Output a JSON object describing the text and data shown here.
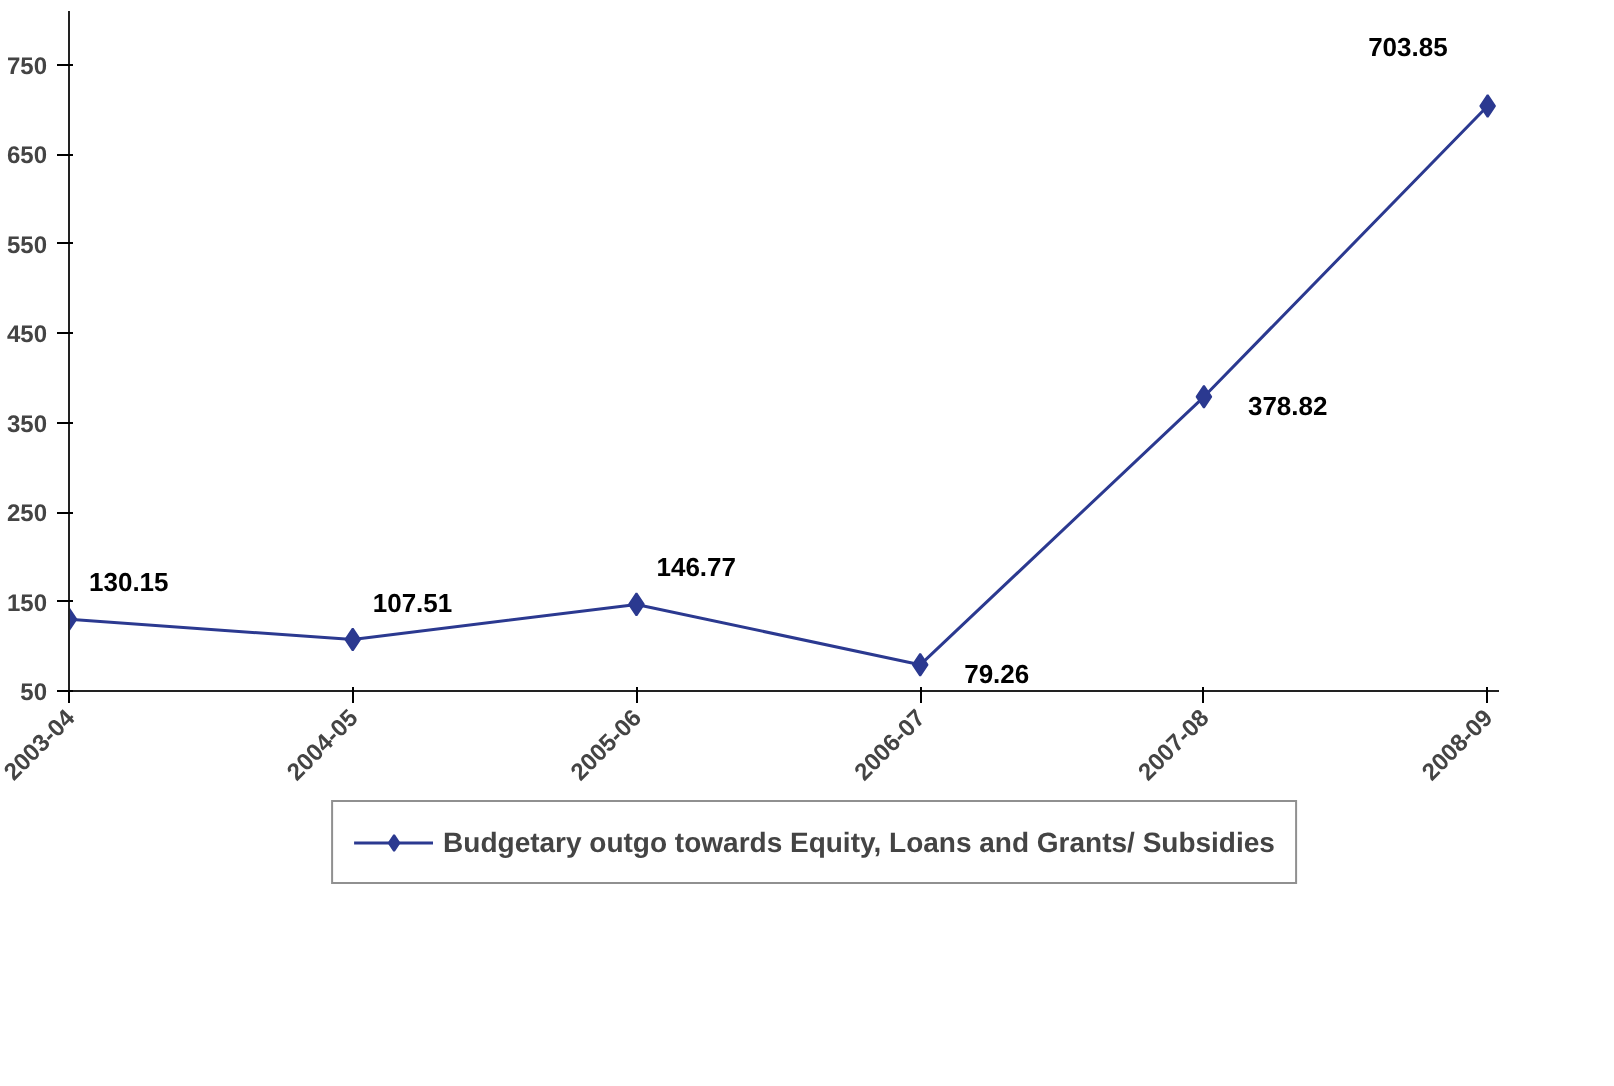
{
  "chart_data": {
    "type": "line",
    "categories": [
      "2003-04",
      "2004-05",
      "2005-06",
      "2006-07",
      "2007-08",
      "2008-09"
    ],
    "series": [
      {
        "name": "Budgetary outgo towards Equity, Loans and Grants/ Subsidies",
        "color": "#2b3990",
        "values": [
          130.15,
          107.51,
          146.77,
          79.26,
          378.82,
          703.85
        ]
      }
    ],
    "ylim": [
      50,
      810
    ],
    "yticks": [
      50,
      150,
      250,
      350,
      450,
      550,
      650,
      750
    ],
    "data_labels": true,
    "grid": false,
    "legend": "bottom",
    "marker": "diamond",
    "line_style": "solid"
  }
}
